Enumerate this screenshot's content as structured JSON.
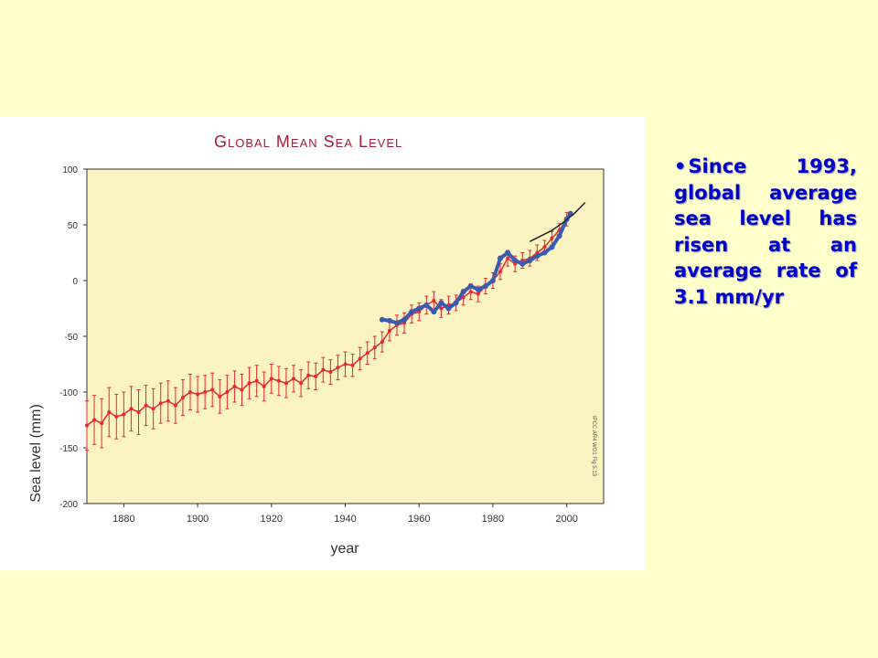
{
  "slide": {
    "bullet_text": "Since 1993, global average sea level has risen at an average rate of 3.1 mm/yr"
  },
  "colors": {
    "slide_bg": "#FFFFCC",
    "plot_bg": "#FBF3C2",
    "tide_gauge": "#E8282C",
    "satellite": "#3A5BB0",
    "projection": "#222222",
    "title": "#A0203A",
    "text": "#0000CC"
  },
  "chart_data": {
    "type": "line",
    "title": "Global Mean Sea Level",
    "xlabel": "year",
    "ylabel": "Sea level (mm)",
    "xlim": [
      1870,
      2010
    ],
    "ylim": [
      -200,
      100
    ],
    "xticks": [
      1880,
      1900,
      1920,
      1940,
      1960,
      1980,
      2000
    ],
    "yticks": [
      100,
      50,
      0,
      -50,
      -100,
      -150,
      -200
    ],
    "credit": "IPCC AR4 WG1 Fig 5.13",
    "series": [
      {
        "style": "red points with error bars",
        "x": [
          1870,
          1872,
          1874,
          1876,
          1878,
          1880,
          1882,
          1884,
          1886,
          1888,
          1890,
          1892,
          1894,
          1896,
          1898,
          1900,
          1902,
          1904,
          1906,
          1908,
          1910,
          1912,
          1914,
          1916,
          1918,
          1920,
          1922,
          1924,
          1926,
          1928,
          1930,
          1932,
          1934,
          1936,
          1938,
          1940,
          1942,
          1944,
          1946,
          1948,
          1950,
          1952,
          1954,
          1956,
          1958,
          1960,
          1962,
          1964,
          1966,
          1968,
          1970,
          1972,
          1974,
          1976,
          1978,
          1980,
          1982,
          1984,
          1986,
          1988,
          1990,
          1992,
          1994,
          1996,
          1998,
          2000
        ],
        "y": [
          -130,
          -125,
          -128,
          -118,
          -122,
          -120,
          -115,
          -118,
          -112,
          -115,
          -110,
          -108,
          -112,
          -105,
          -100,
          -102,
          -100,
          -98,
          -104,
          -100,
          -95,
          -98,
          -92,
          -90,
          -95,
          -88,
          -90,
          -92,
          -88,
          -92,
          -85,
          -86,
          -80,
          -82,
          -78,
          -75,
          -76,
          -70,
          -65,
          -60,
          -55,
          -45,
          -40,
          -38,
          -30,
          -28,
          -22,
          -18,
          -25,
          -22,
          -20,
          -15,
          -10,
          -12,
          -5,
          0,
          8,
          20,
          15,
          18,
          20,
          25,
          30,
          38,
          45,
          55
        ],
        "error": [
          22,
          22,
          22,
          22,
          20,
          20,
          20,
          20,
          18,
          18,
          18,
          18,
          16,
          16,
          16,
          16,
          15,
          15,
          15,
          15,
          14,
          14,
          14,
          14,
          13,
          13,
          13,
          13,
          12,
          12,
          12,
          12,
          11,
          11,
          11,
          11,
          10,
          10,
          10,
          10,
          9,
          9,
          9,
          9,
          8,
          8,
          8,
          8,
          8,
          8,
          7,
          7,
          7,
          7,
          7,
          7,
          7,
          7,
          7,
          7,
          7,
          7,
          6,
          6,
          6,
          6
        ]
      },
      {
        "style": "blue points",
        "x": [
          1950,
          1952,
          1954,
          1956,
          1958,
          1960,
          1962,
          1964,
          1966,
          1968,
          1970,
          1972,
          1974,
          1976,
          1978,
          1980,
          1982,
          1984,
          1986,
          1988,
          1990,
          1992,
          1994,
          1996,
          1998,
          2000,
          2001
        ],
        "y": [
          -35,
          -36,
          -38,
          -35,
          -28,
          -25,
          -22,
          -28,
          -20,
          -25,
          -20,
          -10,
          -5,
          -8,
          -5,
          0,
          20,
          25,
          18,
          15,
          18,
          22,
          25,
          30,
          40,
          55,
          60
        ]
      },
      {
        "style": "black line",
        "x": [
          1990,
          1993,
          1996,
          1999,
          2002,
          2005
        ],
        "y": [
          35,
          40,
          45,
          52,
          60,
          70
        ]
      }
    ]
  }
}
